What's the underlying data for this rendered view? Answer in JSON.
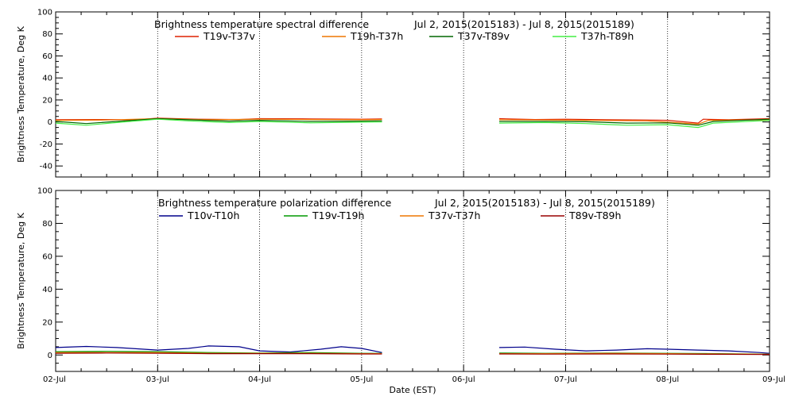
{
  "chart_data": [
    {
      "type": "line",
      "title": "Brightness temperature spectral difference",
      "date_range": "Jul  2, 2015(2015183) - Jul  8, 2015(2015189)",
      "ylabel": "Brightness Temperature, Deg K",
      "xlabel": "",
      "ylim": [
        -50,
        100
      ],
      "yticks": [
        100,
        80,
        60,
        40,
        20,
        0,
        -20,
        -40
      ],
      "xlim": [
        0,
        7
      ],
      "x_tick_labels": [],
      "grid": "vertical dotted lines at day boundaries",
      "legend_position": "top",
      "series": [
        {
          "name": "T19v-T37v",
          "color": "#dd2000",
          "segments": [
            {
              "x": [
                0,
                0.5,
                1,
                1.5,
                2,
                2.5,
                3,
                3.3,
                3.5,
                4,
                4.5,
                5,
                5.5,
                6,
                6.5,
                7
              ],
              "y": [
                0,
                0,
                0,
                0,
                0,
                0,
                0,
                0,
                null,
                null,
                null,
                null,
                null,
                null,
                null,
                null
              ]
            }
          ]
        }
      ]
    },
    {
      "type": "line",
      "title": "Brightness temperature polarization difference",
      "date_range": "Jul  2, 2015(2015183) - Jul  8, 2015(2015189)",
      "ylabel": "Brightness Temperature, Deg K",
      "xlabel": "Date (EST)",
      "ylim": [
        -10,
        100
      ],
      "yticks": [
        100,
        80,
        60,
        40,
        20,
        0
      ],
      "xlim": [
        0,
        7
      ],
      "x_tick_labels": [
        "02-Jul",
        "03-Jul",
        "04-Jul",
        "05-Jul",
        "06-Jul",
        "07-Jul",
        "08-Jul",
        "09-Jul"
      ],
      "grid": "vertical dotted lines at day boundaries",
      "legend_position": "top"
    }
  ]
}
